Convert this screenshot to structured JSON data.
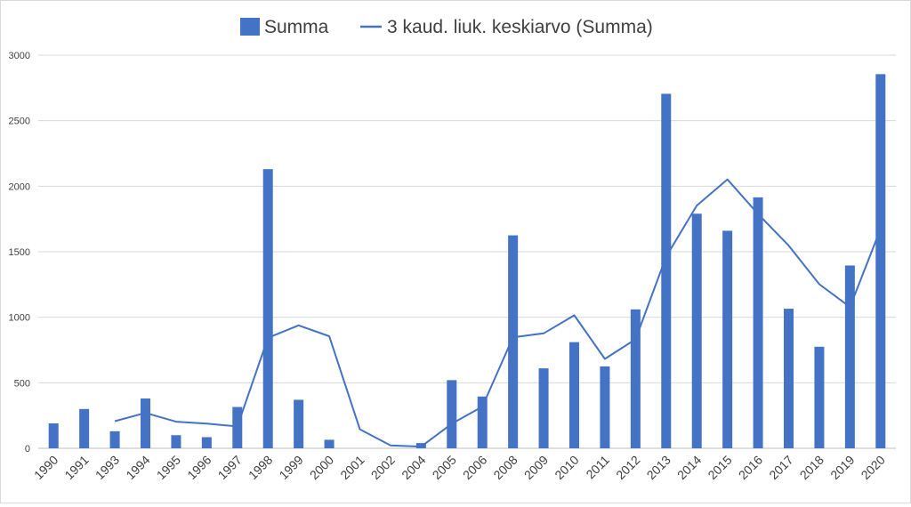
{
  "chart_data": {
    "type": "bar",
    "categories": [
      "1990",
      "1991",
      "1993",
      "1994",
      "1995",
      "1996",
      "1997",
      "1998",
      "1999",
      "2000",
      "2001",
      "2002",
      "2004",
      "2005",
      "2006",
      "2008",
      "2009",
      "2010",
      "2011",
      "2012",
      "2013",
      "2014",
      "2015",
      "2016",
      "2017",
      "2018",
      "2019",
      "2020"
    ],
    "series": [
      {
        "name": "Summa",
        "type": "bar",
        "color": "#4472c4",
        "values": [
          190,
          300,
          130,
          380,
          100,
          85,
          315,
          2130,
          370,
          65,
          0,
          0,
          40,
          520,
          395,
          1625,
          610,
          810,
          625,
          1060,
          2705,
          1790,
          1660,
          1915,
          1065,
          775,
          1395,
          2855
        ]
      },
      {
        "name": "3 kaud. liuk. keskiarvo (Summa)",
        "type": "line",
        "color": "#4472c4",
        "values": [
          null,
          null,
          207,
          270,
          203,
          188,
          167,
          843,
          938,
          855,
          145,
          22,
          13,
          187,
          318,
          847,
          877,
          1015,
          682,
          832,
          1463,
          1852,
          2052,
          1788,
          1547,
          1252,
          1078,
          1675
        ]
      }
    ],
    "ylim": [
      0,
      3000
    ],
    "yticks": [
      0,
      500,
      1000,
      1500,
      2000,
      2500,
      3000
    ],
    "grid": true,
    "legend_position": "top"
  }
}
